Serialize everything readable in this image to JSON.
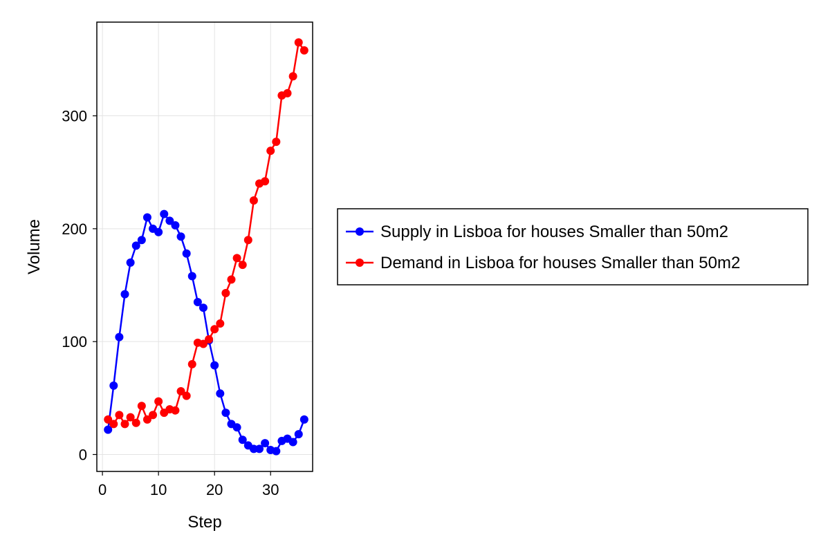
{
  "chart_data": {
    "type": "line",
    "xlabel": "Step",
    "ylabel": "Volume",
    "xlim": [
      -1,
      37.5
    ],
    "ylim": [
      -15,
      383
    ],
    "xticks": [
      0,
      10,
      20,
      30
    ],
    "yticks": [
      0,
      100,
      200,
      300
    ],
    "grid": true,
    "legend_position": "right",
    "x": [
      1,
      2,
      3,
      4,
      5,
      6,
      7,
      8,
      9,
      10,
      11,
      12,
      13,
      14,
      15,
      16,
      17,
      18,
      19,
      20,
      21,
      22,
      23,
      24,
      25,
      26,
      27,
      28,
      29,
      30,
      31,
      32,
      33,
      34,
      35,
      36
    ],
    "series": [
      {
        "name": "Supply in Lisboa for houses Smaller than 50m2",
        "color": "#0000ff",
        "values": [
          22,
          61,
          104,
          142,
          170,
          185,
          190,
          210,
          200,
          197,
          213,
          207,
          203,
          193,
          178,
          158,
          135,
          130,
          101,
          79,
          54,
          37,
          27,
          24,
          13,
          8,
          5,
          5,
          10,
          4,
          3,
          12,
          14,
          11,
          18,
          31
        ]
      },
      {
        "name": "Demand in Lisboa for houses Smaller than 50m2",
        "color": "#ff0000",
        "values": [
          31,
          27,
          35,
          27,
          33,
          28,
          43,
          31,
          35,
          47,
          37,
          40,
          39,
          56,
          52,
          80,
          99,
          98,
          102,
          111,
          116,
          143,
          155,
          174,
          168,
          190,
          225,
          240,
          242,
          269,
          277,
          318,
          320,
          335,
          365,
          358
        ]
      }
    ]
  }
}
